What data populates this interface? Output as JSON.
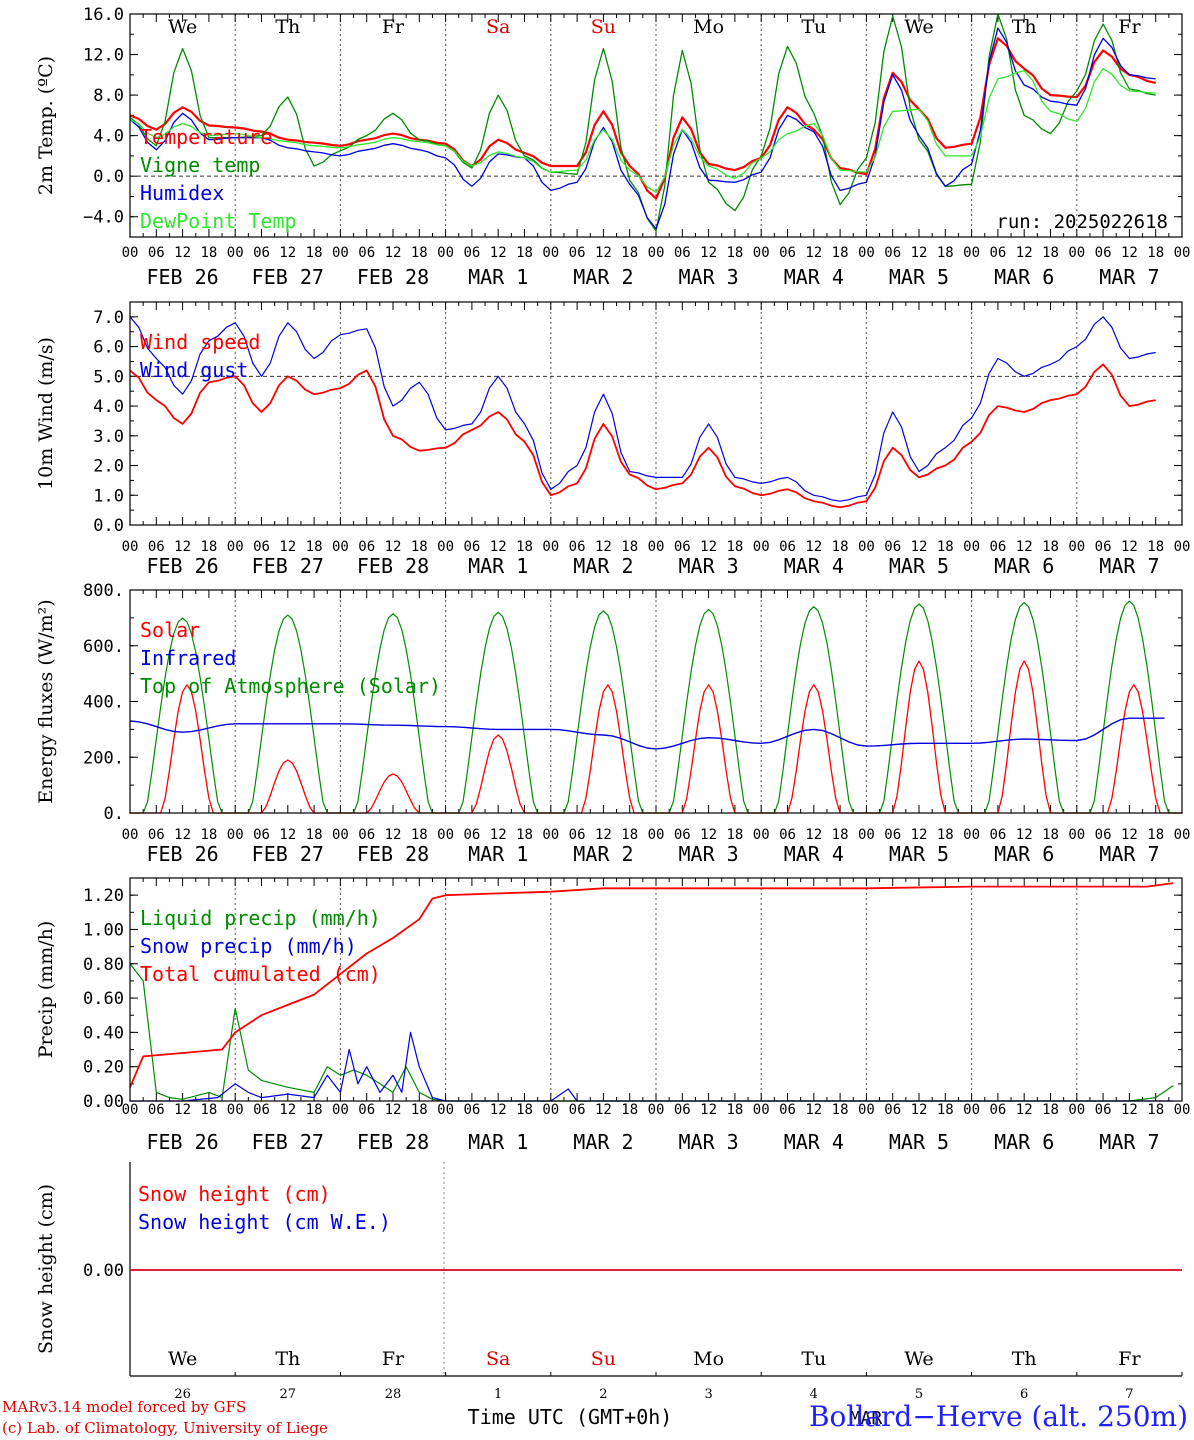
{
  "meta": {
    "credit_line1": "MARv3.14 model forced by GFS",
    "credit_line2": "(c) Lab. of Climatology, University of Liege",
    "station": "Bollard−Herve (alt. 250m)",
    "run_label": "run: 2025022618",
    "bottom_axis_title": "Time UTC (GMT+0h)",
    "bottom_month_label": "MAR"
  },
  "time_axis": {
    "days": 10,
    "hour_ticks": [
      "00",
      "06",
      "12",
      "18"
    ],
    "date_labels": [
      "FEB 26",
      "FEB 27",
      "FEB 28",
      "MAR  1",
      "MAR  2",
      "MAR  3",
      "MAR  4",
      "MAR  5",
      "MAR  6",
      "MAR  7"
    ],
    "weekdays": [
      "We",
      "Th",
      "Fr",
      "Sa",
      "Su",
      "Mo",
      "Tu",
      "We",
      "Th",
      "Fr"
    ],
    "weekend_flags": [
      false,
      false,
      false,
      true,
      true,
      false,
      false,
      false,
      false,
      false
    ],
    "weekday_colors": {
      "weekday": "#000000",
      "weekend": "#e00000"
    },
    "day_numbers": [
      "26",
      "27",
      "28",
      "1",
      "2",
      "3",
      "4",
      "5",
      "6",
      "7"
    ]
  },
  "chart_data": [
    {
      "type": "line",
      "ylabel": "2m Temp. (ºC)",
      "ylim": [
        -6,
        16
      ],
      "yticks": [
        -4,
        0,
        4,
        8,
        12,
        16
      ],
      "ytick_labels": [
        "−4.0",
        "0.0",
        "4.0",
        "8.0",
        "12.0",
        "16.0"
      ],
      "reference_line": 0,
      "x_unit": "hours since FEB 26 00 UTC",
      "series": [
        {
          "name": "Temperature",
          "color": "#ff0000",
          "x": [
            0,
            6,
            12,
            18,
            24,
            30,
            36,
            42,
            48,
            54,
            60,
            66,
            72,
            78,
            84,
            90,
            96,
            102,
            108,
            114,
            120,
            126,
            132,
            138,
            144,
            150,
            156,
            162,
            168,
            174,
            180,
            186,
            192,
            198,
            204,
            210,
            216,
            222,
            228,
            234
          ],
          "y": [
            6.0,
            4.6,
            6.8,
            5.0,
            4.8,
            4.4,
            3.6,
            3.3,
            3.0,
            3.6,
            4.2,
            3.6,
            3.2,
            1.0,
            3.6,
            2.3,
            1.0,
            1.0,
            6.4,
            1.0,
            -2.2,
            5.8,
            1.2,
            0.6,
            1.8,
            6.8,
            4.6,
            0.8,
            0.2,
            10.2,
            6.6,
            2.8,
            3.2,
            13.6,
            10.6,
            8.0,
            7.8,
            12.4,
            10.0,
            9.2
          ]
        },
        {
          "name": "Vigne temp",
          "color": "#008c00",
          "x": [
            0,
            6,
            12,
            18,
            24,
            30,
            36,
            42,
            48,
            54,
            60,
            66,
            72,
            78,
            84,
            90,
            96,
            102,
            108,
            114,
            120,
            126,
            132,
            138,
            144,
            150,
            156,
            162,
            168,
            174,
            180,
            186,
            192,
            198,
            204,
            210,
            216,
            222,
            228,
            234
          ],
          "y": [
            5.8,
            3.0,
            12.6,
            3.8,
            3.8,
            4.0,
            7.8,
            1.0,
            2.5,
            4.0,
            6.2,
            3.6,
            3.0,
            0.8,
            8.0,
            2.0,
            0.4,
            0.2,
            12.6,
            -0.4,
            -5.4,
            12.4,
            -0.6,
            -3.4,
            2.0,
            12.8,
            6.2,
            -2.8,
            1.8,
            15.8,
            3.6,
            -1.0,
            -0.8,
            16.0,
            6.0,
            4.2,
            8.4,
            15.0,
            8.6,
            8.0
          ]
        },
        {
          "name": "Humidex",
          "color": "#0000e0",
          "x": [
            0,
            6,
            12,
            18,
            24,
            30,
            36,
            42,
            48,
            54,
            60,
            66,
            72,
            78,
            84,
            90,
            96,
            102,
            108,
            114,
            120,
            126,
            132,
            138,
            144,
            150,
            156,
            162,
            168,
            174,
            180,
            186,
            192,
            198,
            204,
            210,
            216,
            222,
            228,
            234
          ],
          "y": [
            5.6,
            2.6,
            6.2,
            3.6,
            3.8,
            3.8,
            2.8,
            2.4,
            2.0,
            2.6,
            3.2,
            2.6,
            1.8,
            -1.0,
            2.2,
            1.8,
            -1.4,
            -0.6,
            4.8,
            -0.8,
            -5.2,
            4.6,
            -0.4,
            -0.6,
            0.4,
            6.0,
            4.4,
            -1.4,
            -0.6,
            10.0,
            4.0,
            -1.0,
            1.2,
            14.6,
            9.0,
            7.4,
            7.0,
            13.6,
            10.0,
            9.6
          ]
        },
        {
          "name": "DewPoint Temp",
          "color": "#2ee62e",
          "x": [
            0,
            6,
            12,
            18,
            24,
            30,
            36,
            42,
            48,
            54,
            60,
            66,
            72,
            78,
            84,
            90,
            96,
            102,
            108,
            114,
            120,
            126,
            132,
            138,
            144,
            150,
            156,
            162,
            168,
            174,
            180,
            186,
            192,
            198,
            204,
            210,
            216,
            222,
            228,
            234
          ],
          "y": [
            5.6,
            3.8,
            5.2,
            4.0,
            4.2,
            3.8,
            3.4,
            3.0,
            2.8,
            3.2,
            3.8,
            3.4,
            3.0,
            1.0,
            2.4,
            1.8,
            0.4,
            0.6,
            4.6,
            0.6,
            -1.6,
            4.6,
            1.0,
            -0.2,
            1.8,
            4.2,
            5.2,
            0.6,
            0.4,
            6.4,
            6.6,
            2.0,
            2.0,
            9.6,
            10.4,
            6.4,
            5.4,
            10.6,
            8.4,
            8.2
          ]
        }
      ]
    },
    {
      "type": "line",
      "ylabel": "10m Wind (m/s)",
      "ylim": [
        0,
        7.5
      ],
      "yticks": [
        0,
        1,
        2,
        3,
        4,
        5,
        6,
        7
      ],
      "ytick_labels": [
        "0.0",
        "1.0",
        "2.0",
        "3.0",
        "4.0",
        "5.0",
        "6.0",
        "7.0"
      ],
      "reference_line": 5,
      "x_unit": "hours since FEB 26 00 UTC",
      "series": [
        {
          "name": "Wind speed",
          "color": "#ff0000",
          "x": [
            0,
            6,
            12,
            18,
            24,
            30,
            36,
            42,
            48,
            54,
            60,
            66,
            72,
            78,
            84,
            90,
            96,
            102,
            108,
            114,
            120,
            126,
            132,
            138,
            144,
            150,
            156,
            162,
            168,
            174,
            180,
            186,
            192,
            198,
            204,
            210,
            216,
            222,
            228,
            234
          ],
          "y": [
            5.2,
            4.2,
            3.4,
            4.8,
            5.0,
            3.8,
            5.0,
            4.4,
            4.6,
            5.2,
            3.0,
            2.5,
            2.6,
            3.2,
            3.8,
            2.8,
            1.0,
            1.4,
            3.4,
            1.7,
            1.2,
            1.4,
            2.6,
            1.3,
            1.0,
            1.2,
            0.8,
            0.6,
            0.8,
            2.6,
            1.6,
            2.0,
            2.8,
            4.0,
            3.8,
            4.2,
            4.4,
            5.4,
            4.0,
            4.2
          ]
        },
        {
          "name": "Wind gust",
          "color": "#0000e0",
          "x": [
            0,
            6,
            12,
            18,
            24,
            30,
            36,
            42,
            48,
            54,
            60,
            66,
            72,
            78,
            84,
            90,
            96,
            102,
            108,
            114,
            120,
            126,
            132,
            138,
            144,
            150,
            156,
            162,
            168,
            174,
            180,
            186,
            192,
            198,
            204,
            210,
            216,
            222,
            228,
            234
          ],
          "y": [
            7.0,
            5.6,
            4.4,
            6.2,
            6.8,
            5.0,
            6.8,
            5.6,
            6.4,
            6.6,
            4.0,
            4.8,
            3.2,
            3.4,
            5.0,
            3.4,
            1.2,
            2.0,
            4.4,
            1.8,
            1.6,
            1.6,
            3.4,
            1.6,
            1.4,
            1.6,
            1.0,
            0.8,
            1.0,
            3.8,
            1.8,
            2.6,
            3.6,
            5.6,
            5.0,
            5.4,
            6.0,
            7.0,
            5.6,
            5.8
          ]
        }
      ]
    },
    {
      "type": "line",
      "ylabel": "Energy fluxes (W/m²)",
      "ylim": [
        0,
        800
      ],
      "yticks": [
        0,
        200,
        400,
        600,
        800
      ],
      "ytick_labels": [
        "0.",
        "200.",
        "400.",
        "600.",
        "800."
      ],
      "x_unit": "hours since FEB 26 00 UTC",
      "series": [
        {
          "name": "Solar",
          "color": "#ff0000",
          "daily_peaks": [
            460,
            190,
            140,
            280,
            460,
            460,
            460,
            545,
            545,
            460
          ],
          "daily_peak_hours": [
            13,
            12,
            12,
            12,
            13,
            12,
            12,
            12,
            12,
            13
          ]
        },
        {
          "name": "Infrared",
          "color": "#0000e0",
          "x": [
            0,
            12,
            24,
            36,
            48,
            60,
            72,
            84,
            96,
            108,
            120,
            132,
            144,
            156,
            168,
            180,
            192,
            204,
            216,
            228,
            236
          ],
          "y": [
            330,
            290,
            320,
            320,
            320,
            315,
            310,
            300,
            300,
            280,
            230,
            270,
            250,
            300,
            240,
            250,
            250,
            265,
            260,
            340,
            340
          ]
        },
        {
          "name": "Top of Atmosphere (Solar)",
          "color": "#008c00",
          "daily_peaks": [
            700,
            710,
            715,
            720,
            725,
            730,
            740,
            750,
            755,
            760
          ]
        }
      ]
    },
    {
      "type": "line",
      "ylabel": "Precip (mm/h)",
      "ylim": [
        0,
        1.3
      ],
      "yticks": [
        0,
        0.2,
        0.4,
        0.6,
        0.8,
        1.0,
        1.2
      ],
      "ytick_labels": [
        "0.00",
        "0.20",
        "0.40",
        "0.60",
        "0.80",
        "1.00",
        "1.20"
      ],
      "x_unit": "hours since FEB 26 00 UTC",
      "series": [
        {
          "name": "Liquid precip (mm/h)",
          "color": "#008c00",
          "x": [
            0,
            3,
            6,
            9,
            12,
            18,
            21,
            24,
            27,
            30,
            36,
            42,
            45,
            48,
            51,
            54,
            57,
            60,
            63,
            66,
            69,
            72,
            96,
            120,
            228,
            234,
            238
          ],
          "y": [
            0.8,
            0.7,
            0.05,
            0.02,
            0.01,
            0.05,
            0.02,
            0.54,
            0.18,
            0.12,
            0.08,
            0.05,
            0.2,
            0.15,
            0.18,
            0.15,
            0.1,
            0.05,
            0.2,
            0.05,
            0.01,
            0.0,
            0.0,
            0.0,
            0.0,
            0.02,
            0.09
          ]
        },
        {
          "name": "Snow precip (mm/h)",
          "color": "#0000e0",
          "x": [
            0,
            12,
            20,
            24,
            27,
            30,
            36,
            42,
            45,
            48,
            50,
            52,
            54,
            57,
            60,
            62,
            64,
            66,
            69,
            72,
            96,
            100,
            102,
            120,
            238
          ],
          "y": [
            0.0,
            0.0,
            0.02,
            0.1,
            0.05,
            0.02,
            0.04,
            0.02,
            0.15,
            0.05,
            0.3,
            0.1,
            0.2,
            0.05,
            0.15,
            0.05,
            0.4,
            0.2,
            0.02,
            0.0,
            0.0,
            0.07,
            0.0,
            0.0,
            0.0
          ]
        },
        {
          "name": "Total cumulated (cm)",
          "color": "#ff0000",
          "x": [
            0,
            3,
            12,
            21,
            24,
            30,
            36,
            42,
            48,
            54,
            60,
            66,
            69,
            72,
            84,
            96,
            108,
            120,
            144,
            168,
            192,
            216,
            232,
            238
          ],
          "y": [
            0.08,
            0.26,
            0.28,
            0.3,
            0.4,
            0.5,
            0.56,
            0.62,
            0.74,
            0.86,
            0.95,
            1.06,
            1.18,
            1.2,
            1.21,
            1.22,
            1.24,
            1.24,
            1.24,
            1.24,
            1.25,
            1.25,
            1.25,
            1.27
          ]
        }
      ]
    },
    {
      "type": "line",
      "ylabel": "Snow height (cm)",
      "ytick_labels": [
        "0.00"
      ],
      "x_unit": "hours since FEB 26 00 UTC",
      "series": [
        {
          "name": "Snow height (cm)",
          "color": "#ff0000",
          "x": [
            0,
            240
          ],
          "y": [
            0,
            0
          ]
        },
        {
          "name": "Snow height (cm W.E.)",
          "color": "#0000e0",
          "x": [
            0,
            240
          ],
          "y": [
            0,
            0
          ]
        }
      ]
    }
  ]
}
